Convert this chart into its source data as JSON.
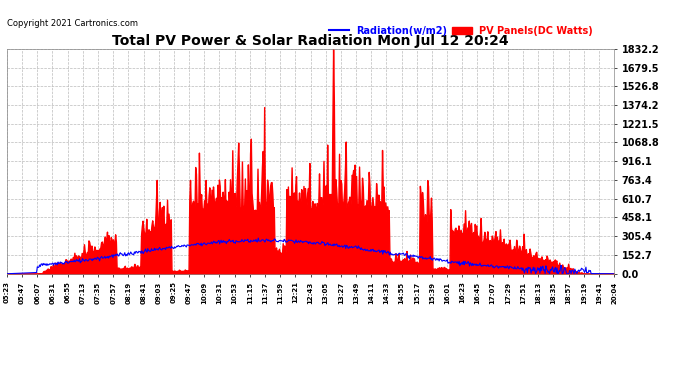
{
  "title": "Total PV Power & Solar Radiation Mon Jul 12 20:24",
  "copyright": "Copyright 2021 Cartronics.com",
  "legend_radiation": "Radiation(w/m2)",
  "legend_panels": "PV Panels(DC Watts)",
  "radiation_color": "blue",
  "panels_color": "red",
  "background_color": "#ffffff",
  "grid_color": "#bbbbbb",
  "ymax": 1832.2,
  "ymin": 0.0,
  "yticks": [
    0.0,
    152.7,
    305.4,
    458.1,
    610.7,
    763.4,
    916.1,
    1068.8,
    1221.5,
    1374.2,
    1526.8,
    1679.5,
    1832.2
  ],
  "x_labels": [
    "05:23",
    "05:47",
    "06:07",
    "06:31",
    "06:55",
    "07:13",
    "07:35",
    "07:57",
    "08:19",
    "08:41",
    "09:03",
    "09:25",
    "09:47",
    "10:09",
    "10:31",
    "10:53",
    "11:15",
    "11:37",
    "11:59",
    "12:21",
    "12:43",
    "13:05",
    "13:27",
    "13:49",
    "14:11",
    "14:33",
    "14:55",
    "15:17",
    "15:39",
    "16:01",
    "16:23",
    "16:45",
    "17:07",
    "17:29",
    "17:51",
    "18:13",
    "18:35",
    "18:57",
    "19:19",
    "19:41",
    "20:04"
  ]
}
